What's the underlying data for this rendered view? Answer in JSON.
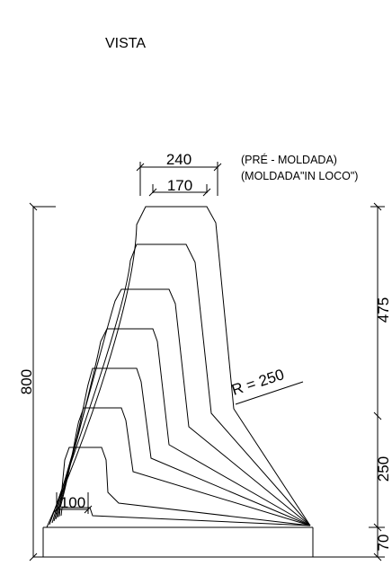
{
  "title": "VISTA",
  "notes": {
    "pre_moldada": "(PRÉ - MOLDADA)",
    "moldada_in_loco": "(MOLDADA\"IN LOCO\")"
  },
  "dimensions": {
    "top_width_outer": "240",
    "top_width_inner": "170",
    "total_height": "800",
    "upper_height": "475",
    "middle_height": "250",
    "base_height": "70",
    "toe_width": "100",
    "radius": "R = 250"
  }
}
